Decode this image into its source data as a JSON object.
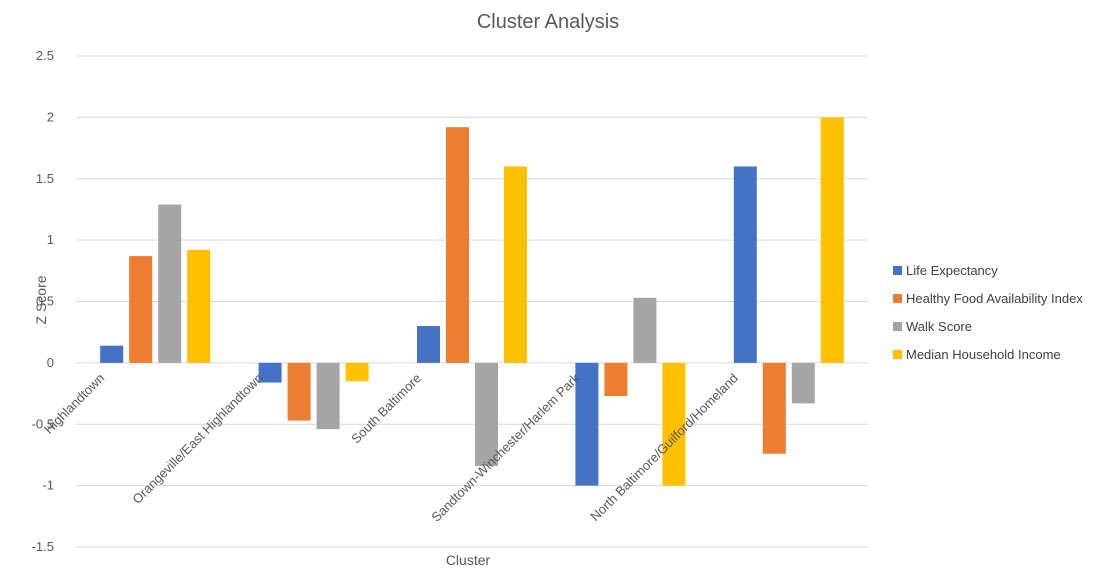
{
  "chart_data": {
    "type": "bar",
    "title": "Cluster Analysis",
    "xlabel": "Cluster",
    "ylabel": "Z Score",
    "ylim": [
      -1.5,
      2.5
    ],
    "yticks": [
      "2.5",
      "2",
      "1.5",
      "1",
      "0.5",
      "0",
      "-0.5",
      "-1",
      "-1.5"
    ],
    "ytick_values": [
      2.5,
      2,
      1.5,
      1,
      0.5,
      0,
      -0.5,
      -1,
      -1.5
    ],
    "grid": true,
    "legend_position": "right",
    "categories": [
      "Highlandtown",
      "Orangeville/East Highlandtown",
      "South Baltimore",
      "Sandtown-Winchester/Harlem Park",
      "North Baltimore/Guilford/Homeland"
    ],
    "series": [
      {
        "name": "Life Expectancy",
        "color": "#4472c4",
        "values": [
          0.14,
          -0.16,
          0.3,
          -1.0,
          1.6
        ]
      },
      {
        "name": "Healthy Food Availability Index",
        "color": "#ed7d31",
        "values": [
          0.87,
          -0.47,
          1.92,
          -0.27,
          -0.74
        ]
      },
      {
        "name": "Walk Score",
        "color": "#a5a5a5",
        "values": [
          1.29,
          -0.54,
          -0.84,
          0.53,
          -0.33
        ]
      },
      {
        "name": "Median Household Income",
        "color": "#ffc000",
        "values": [
          0.92,
          -0.15,
          1.6,
          -1.0,
          2.0
        ]
      }
    ]
  }
}
